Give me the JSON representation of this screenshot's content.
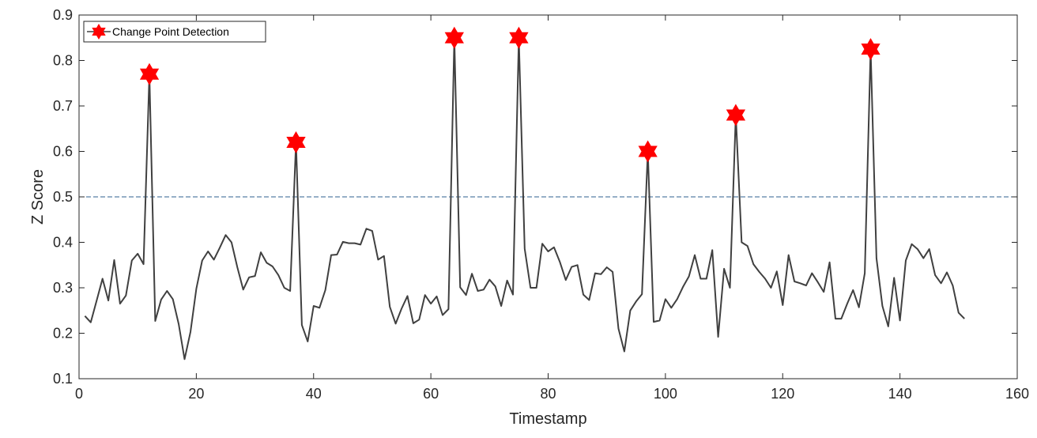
{
  "chart_data": {
    "type": "line",
    "title": "",
    "xlabel": "Timestamp",
    "ylabel": "Z Score",
    "xlim": [
      0,
      160
    ],
    "ylim": [
      0.1,
      0.9
    ],
    "x_ticks": [
      "0",
      "20",
      "40",
      "60",
      "80",
      "100",
      "120",
      "140",
      "160"
    ],
    "y_ticks": [
      "0.1",
      "0.2",
      "0.3",
      "0.4",
      "0.5",
      "0.6",
      "0.7",
      "0.8",
      "0.9"
    ],
    "grid": false,
    "legend_position": "top-left",
    "threshold": 0.5,
    "series": [
      {
        "name": "",
        "color": "#404040",
        "x": [
          1,
          2,
          3,
          4,
          5,
          6,
          7,
          8,
          9,
          10,
          11,
          12,
          13,
          14,
          15,
          16,
          17,
          18,
          19,
          20,
          21,
          22,
          23,
          24,
          25,
          26,
          27,
          28,
          29,
          30,
          31,
          32,
          33,
          34,
          35,
          36,
          37,
          38,
          39,
          40,
          41,
          42,
          43,
          44,
          45,
          46,
          47,
          48,
          49,
          50,
          51,
          52,
          53,
          54,
          55,
          56,
          57,
          58,
          59,
          60,
          61,
          62,
          63,
          64,
          65,
          66,
          67,
          68,
          69,
          70,
          71,
          72,
          73,
          74,
          75,
          76,
          77,
          78,
          79,
          80,
          81,
          82,
          83,
          84,
          85,
          86,
          87,
          88,
          89,
          90,
          91,
          92,
          93,
          94,
          95,
          96,
          97,
          98,
          99,
          100,
          101,
          102,
          103,
          104,
          105,
          106,
          107,
          108,
          109,
          110,
          111,
          112,
          113,
          114,
          115,
          116,
          117,
          118,
          119,
          120,
          121,
          122,
          123,
          124,
          125,
          126,
          127,
          128,
          129,
          130,
          131,
          132,
          133,
          134,
          135,
          136,
          137,
          138,
          139,
          140,
          141,
          142,
          143,
          144,
          145,
          146,
          147,
          148,
          149,
          150,
          151
        ],
        "values": [
          0.238,
          0.224,
          0.272,
          0.32,
          0.272,
          0.361,
          0.265,
          0.283,
          0.36,
          0.375,
          0.352,
          0.77,
          0.227,
          0.274,
          0.293,
          0.275,
          0.22,
          0.143,
          0.203,
          0.298,
          0.36,
          0.38,
          0.362,
          0.388,
          0.416,
          0.4,
          0.345,
          0.296,
          0.323,
          0.326,
          0.378,
          0.355,
          0.347,
          0.328,
          0.3,
          0.293,
          0.62,
          0.218,
          0.182,
          0.26,
          0.256,
          0.295,
          0.372,
          0.373,
          0.401,
          0.398,
          0.398,
          0.395,
          0.43,
          0.425,
          0.362,
          0.37,
          0.258,
          0.221,
          0.254,
          0.282,
          0.222,
          0.23,
          0.284,
          0.265,
          0.281,
          0.24,
          0.253,
          0.85,
          0.301,
          0.284,
          0.331,
          0.293,
          0.296,
          0.318,
          0.303,
          0.26,
          0.316,
          0.285,
          0.85,
          0.386,
          0.3,
          0.3,
          0.397,
          0.38,
          0.389,
          0.357,
          0.317,
          0.346,
          0.35,
          0.285,
          0.273,
          0.332,
          0.33,
          0.345,
          0.335,
          0.21,
          0.16,
          0.25,
          0.27,
          0.286,
          0.6,
          0.225,
          0.228,
          0.275,
          0.256,
          0.275,
          0.302,
          0.325,
          0.372,
          0.32,
          0.32,
          0.383,
          0.192,
          0.342,
          0.3,
          0.68,
          0.4,
          0.392,
          0.352,
          0.335,
          0.32,
          0.3,
          0.336,
          0.262,
          0.372,
          0.314,
          0.31,
          0.305,
          0.332,
          0.312,
          0.291,
          0.356,
          0.232,
          0.232,
          0.265,
          0.295,
          0.257,
          0.332,
          0.825,
          0.365,
          0.26,
          0.215,
          0.322,
          0.228,
          0.36,
          0.396,
          0.385,
          0.365,
          0.385,
          0.328,
          0.31,
          0.334,
          0.305,
          0.245,
          0.232
        ]
      },
      {
        "name": "Change Point Detection",
        "color": "#ff0000",
        "marker": "hexagram",
        "x": [
          12,
          37,
          64,
          75,
          97,
          112,
          135
        ],
        "values": [
          0.77,
          0.62,
          0.85,
          0.85,
          0.6,
          0.68,
          0.825
        ]
      }
    ]
  }
}
